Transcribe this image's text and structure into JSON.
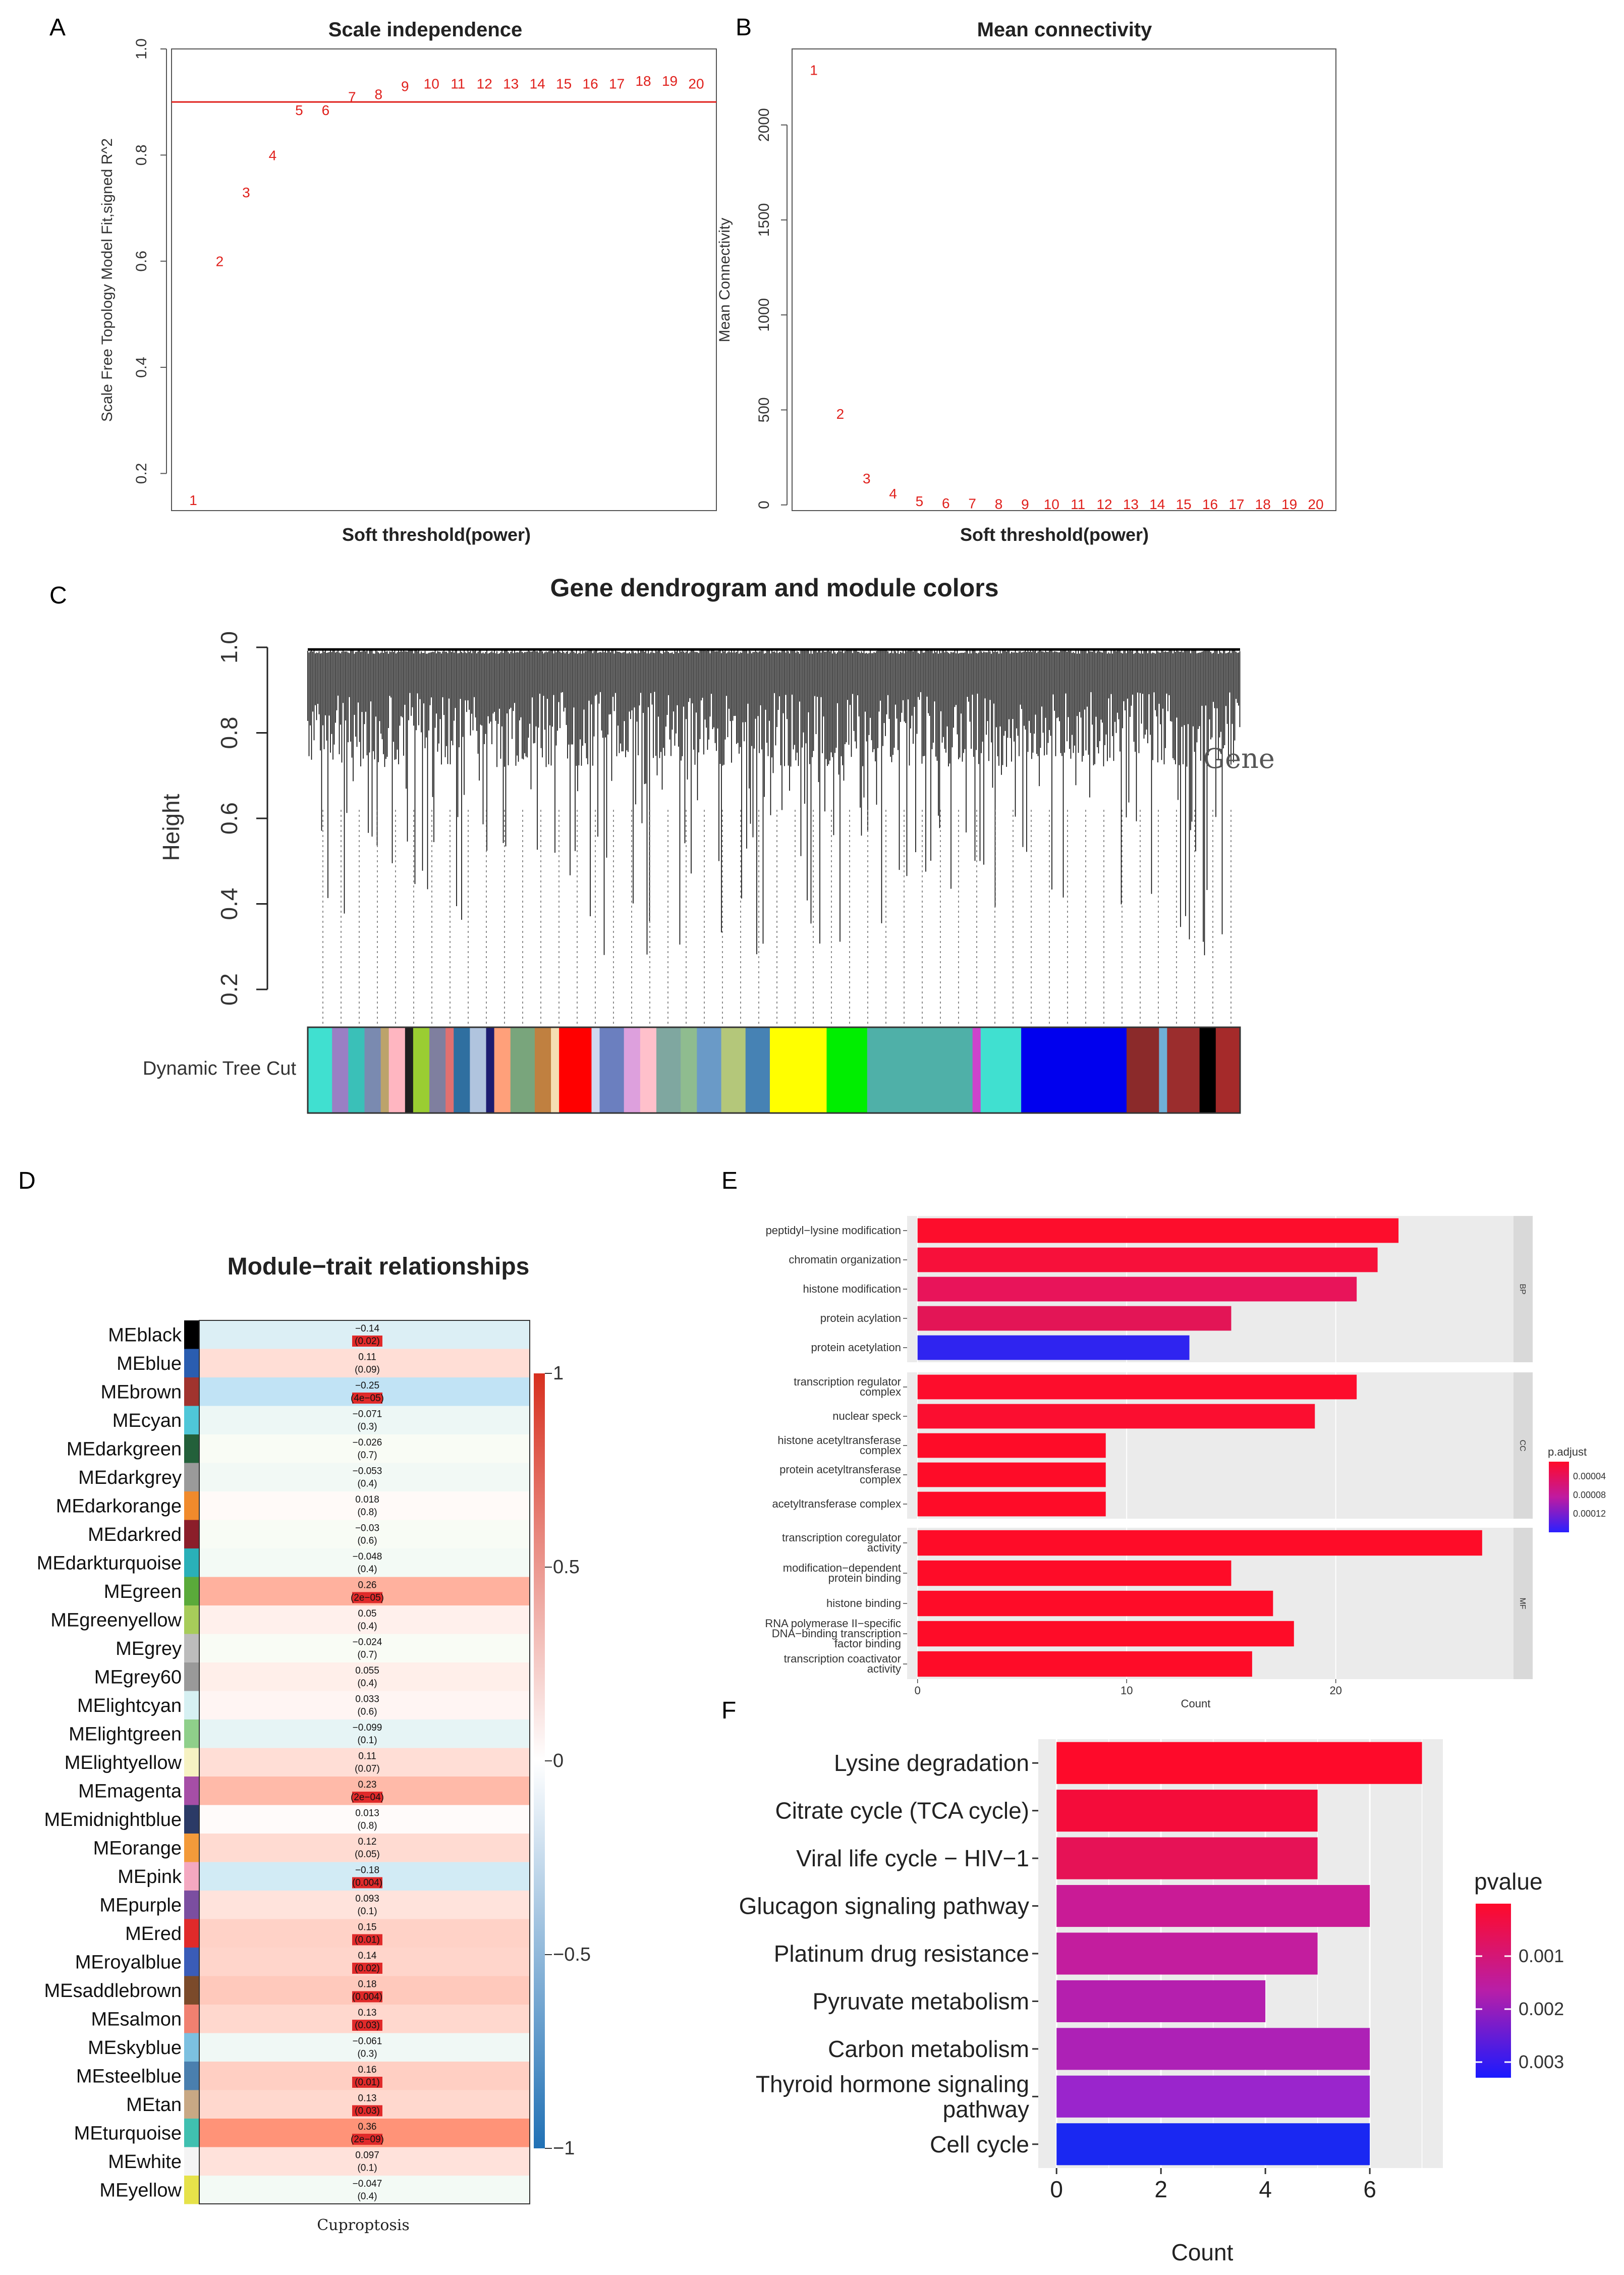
{
  "panel_letters": {
    "a": "A",
    "b": "B",
    "c": "C",
    "d": "D",
    "e": "E",
    "f": "F"
  },
  "colors": {
    "red": "#e0201c",
    "line": "#e0201c"
  },
  "chart_data": [
    {
      "id": "A",
      "type": "scatter",
      "title": "Scale independence",
      "xlabel": "Soft threshold(power)",
      "ylabel": "Scale Free Topology Model Fit,signed R^2",
      "ylim": [
        0.13,
        1.0
      ],
      "yticks": [
        0.2,
        0.4,
        0.6,
        0.8,
        1.0
      ],
      "threshold_line": 0.9,
      "points": [
        {
          "label": "1",
          "x": 1,
          "y": 0.15
        },
        {
          "label": "2",
          "x": 2,
          "y": 0.6
        },
        {
          "label": "3",
          "x": 3,
          "y": 0.73
        },
        {
          "label": "4",
          "x": 4,
          "y": 0.8
        },
        {
          "label": "5",
          "x": 5,
          "y": 0.885
        },
        {
          "label": "6",
          "x": 6,
          "y": 0.885
        },
        {
          "label": "7",
          "x": 7,
          "y": 0.91
        },
        {
          "label": "8",
          "x": 8,
          "y": 0.915
        },
        {
          "label": "9",
          "x": 9,
          "y": 0.93
        },
        {
          "label": "10",
          "x": 10,
          "y": 0.935
        },
        {
          "label": "11",
          "x": 11,
          "y": 0.935
        },
        {
          "label": "12",
          "x": 12,
          "y": 0.935
        },
        {
          "label": "13",
          "x": 13,
          "y": 0.935
        },
        {
          "label": "14",
          "x": 14,
          "y": 0.935
        },
        {
          "label": "15",
          "x": 15,
          "y": 0.935
        },
        {
          "label": "16",
          "x": 16,
          "y": 0.935
        },
        {
          "label": "17",
          "x": 17,
          "y": 0.935
        },
        {
          "label": "18",
          "x": 18,
          "y": 0.94
        },
        {
          "label": "19",
          "x": 19,
          "y": 0.94
        },
        {
          "label": "20",
          "x": 20,
          "y": 0.935
        }
      ]
    },
    {
      "id": "B",
      "type": "scatter",
      "title": "Mean connectivity",
      "xlabel": "Soft threshold(power)",
      "ylabel": "Mean Connectivity",
      "ylim": [
        -30,
        2400
      ],
      "yticks": [
        0,
        500,
        1000,
        1500,
        2000
      ],
      "points": [
        {
          "label": "1",
          "x": 1,
          "y": 2290
        },
        {
          "label": "2",
          "x": 2,
          "y": 480
        },
        {
          "label": "3",
          "x": 3,
          "y": 140
        },
        {
          "label": "4",
          "x": 4,
          "y": 60
        },
        {
          "label": "5",
          "x": 5,
          "y": 20
        },
        {
          "label": "6",
          "x": 6,
          "y": 10
        },
        {
          "label": "7",
          "x": 7,
          "y": 8
        },
        {
          "label": "8",
          "x": 8,
          "y": 6
        },
        {
          "label": "9",
          "x": 9,
          "y": 4
        },
        {
          "label": "10",
          "x": 10,
          "y": 4
        },
        {
          "label": "11",
          "x": 11,
          "y": 4
        },
        {
          "label": "12",
          "x": 12,
          "y": 4
        },
        {
          "label": "13",
          "x": 13,
          "y": 4
        },
        {
          "label": "14",
          "x": 14,
          "y": 4
        },
        {
          "label": "15",
          "x": 15,
          "y": 4
        },
        {
          "label": "16",
          "x": 16,
          "y": 4
        },
        {
          "label": "17",
          "x": 17,
          "y": 4
        },
        {
          "label": "18",
          "x": 18,
          "y": 4
        },
        {
          "label": "19",
          "x": 19,
          "y": 4
        },
        {
          "label": "20",
          "x": 20,
          "y": 4
        }
      ]
    },
    {
      "id": "C",
      "type": "dendrogram",
      "title": "Gene dendrogram and module colors",
      "ylabel": "Height",
      "ylim": [
        0.2,
        1.0
      ],
      "yticks": [
        "0.2",
        "0.4",
        "0.6",
        "0.8",
        "1.0"
      ],
      "annotation": "Gene",
      "color_bar_label": "Dynamic Tree Cut",
      "color_blocks": [
        {
          "color": "#40e0d0",
          "w": 3
        },
        {
          "color": "#9a7fc4",
          "w": 2
        },
        {
          "color": "#3ac0b8",
          "w": 2
        },
        {
          "color": "#7a8ab0",
          "w": 2
        },
        {
          "color": "#bca36a",
          "w": 1
        },
        {
          "color": "#ffb6c1",
          "w": 2
        },
        {
          "color": "#1f1f1f",
          "w": 1
        },
        {
          "color": "#9acd32",
          "w": 2
        },
        {
          "color": "#7f7f9f",
          "w": 2
        },
        {
          "color": "#e07070",
          "w": 1
        },
        {
          "color": "#2f6fa0",
          "w": 2
        },
        {
          "color": "#b0c4de",
          "w": 2
        },
        {
          "color": "#1c1c70",
          "w": 1
        },
        {
          "color": "#ffa07a",
          "w": 2
        },
        {
          "color": "#79a57c",
          "w": 3
        },
        {
          "color": "#c08040",
          "w": 2
        },
        {
          "color": "#f5deb3",
          "w": 1
        },
        {
          "color": "#ff0000",
          "w": 4
        },
        {
          "color": "#cfd8f0",
          "w": 1
        },
        {
          "color": "#6b7fbf",
          "w": 3
        },
        {
          "color": "#dda0dd",
          "w": 2
        },
        {
          "color": "#ffc0cb",
          "w": 2
        },
        {
          "color": "#7fa7a0",
          "w": 3
        },
        {
          "color": "#8fbc8f",
          "w": 2
        },
        {
          "color": "#6a9ac7",
          "w": 3
        },
        {
          "color": "#b4c77a",
          "w": 3
        },
        {
          "color": "#4682b4",
          "w": 3
        },
        {
          "color": "#ffff00",
          "w": 7
        },
        {
          "color": "#00ee00",
          "w": 5
        },
        {
          "color": "#4fb0a8",
          "w": 13
        },
        {
          "color": "#cc44cc",
          "w": 1
        },
        {
          "color": "#40e0d0",
          "w": 5
        },
        {
          "color": "#0000ee",
          "w": 13
        },
        {
          "color": "#8b2a2a",
          "w": 4
        },
        {
          "color": "#6fb0d8",
          "w": 1
        },
        {
          "color": "#9b2d2d",
          "w": 4
        },
        {
          "color": "#000000",
          "w": 2
        },
        {
          "color": "#a52a2a",
          "w": 3
        }
      ]
    },
    {
      "id": "D",
      "type": "heatmap",
      "title": "Module−trait relationships",
      "xlabel": "Cuproptosis",
      "scale": [
        "1",
        "0.5",
        "0",
        "−0.5",
        "−1"
      ],
      "rows": [
        {
          "name": "MEblack",
          "color": "#000000",
          "r": "−0.14",
          "p": "(0.02)",
          "v": -0.14,
          "sig": true
        },
        {
          "name": "MEblue",
          "color": "#2a5db0",
          "r": "0.11",
          "p": "(0.09)",
          "v": 0.11,
          "sig": false
        },
        {
          "name": "MEbrown",
          "color": "#a0332e",
          "r": "−0.25",
          "p": "(4e−05)",
          "v": -0.25,
          "sig": true
        },
        {
          "name": "MEcyan",
          "color": "#4fc7d8",
          "r": "−0.071",
          "p": "(0.3)",
          "v": -0.071,
          "sig": false
        },
        {
          "name": "MEdarkgreen",
          "color": "#23603a",
          "r": "−0.026",
          "p": "(0.7)",
          "v": -0.026,
          "sig": false
        },
        {
          "name": "MEdarkgrey",
          "color": "#9a9a9a",
          "r": "−0.053",
          "p": "(0.4)",
          "v": -0.053,
          "sig": false
        },
        {
          "name": "MEdarkorange",
          "color": "#f08a2c",
          "r": "0.018",
          "p": "(0.8)",
          "v": 0.018,
          "sig": false
        },
        {
          "name": "MEdarkred",
          "color": "#8b1e2a",
          "r": "−0.03",
          "p": "(0.6)",
          "v": -0.03,
          "sig": false
        },
        {
          "name": "MEdarkturquoise",
          "color": "#2ab0b8",
          "r": "−0.048",
          "p": "(0.4)",
          "v": -0.048,
          "sig": false
        },
        {
          "name": "MEgreen",
          "color": "#5aaa3a",
          "r": "0.26",
          "p": "(2e−05)",
          "v": 0.26,
          "sig": true
        },
        {
          "name": "MEgreenyellow",
          "color": "#a7cc5a",
          "r": "0.05",
          "p": "(0.4)",
          "v": 0.05,
          "sig": false
        },
        {
          "name": "MEgrey",
          "color": "#bcbcbc",
          "r": "−0.024",
          "p": "(0.7)",
          "v": -0.024,
          "sig": false
        },
        {
          "name": "MEgrey60",
          "color": "#999999",
          "r": "0.055",
          "p": "(0.4)",
          "v": 0.055,
          "sig": false
        },
        {
          "name": "MElightcyan",
          "color": "#d6f0f2",
          "r": "0.033",
          "p": "(0.6)",
          "v": 0.033,
          "sig": false
        },
        {
          "name": "MElightgreen",
          "color": "#8fcf8a",
          "r": "−0.099",
          "p": "(0.1)",
          "v": -0.099,
          "sig": false
        },
        {
          "name": "MElightyellow",
          "color": "#f6f2c2",
          "r": "0.11",
          "p": "(0.07)",
          "v": 0.11,
          "sig": false
        },
        {
          "name": "MEmagenta",
          "color": "#a64ea6",
          "r": "0.23",
          "p": "(2e−04)",
          "v": 0.23,
          "sig": true
        },
        {
          "name": "MEmidnightblue",
          "color": "#2b3a66",
          "r": "0.013",
          "p": "(0.8)",
          "v": 0.013,
          "sig": false
        },
        {
          "name": "MEorange",
          "color": "#f39a3a",
          "r": "0.12",
          "p": "(0.05)",
          "v": 0.12,
          "sig": false
        },
        {
          "name": "MEpink",
          "color": "#f4a8c0",
          "r": "−0.18",
          "p": "(0.004)",
          "v": -0.18,
          "sig": true
        },
        {
          "name": "MEpurple",
          "color": "#7b4ea0",
          "r": "0.093",
          "p": "(0.1)",
          "v": 0.093,
          "sig": false
        },
        {
          "name": "MEred",
          "color": "#e02a2a",
          "r": "0.15",
          "p": "(0.01)",
          "v": 0.15,
          "sig": true
        },
        {
          "name": "MEroyalblue",
          "color": "#3a5cb8",
          "r": "0.14",
          "p": "(0.02)",
          "v": 0.14,
          "sig": true
        },
        {
          "name": "MEsaddlebrown",
          "color": "#7b4a2a",
          "r": "0.18",
          "p": "(0.004)",
          "v": 0.18,
          "sig": true
        },
        {
          "name": "MEsalmon",
          "color": "#f08070",
          "r": "0.13",
          "p": "(0.03)",
          "v": 0.13,
          "sig": true
        },
        {
          "name": "MEskyblue",
          "color": "#7cc0e0",
          "r": "−0.061",
          "p": "(0.3)",
          "v": -0.061,
          "sig": false
        },
        {
          "name": "MEsteelblue",
          "color": "#4a7fae",
          "r": "0.16",
          "p": "(0.01)",
          "v": 0.16,
          "sig": true
        },
        {
          "name": "MEtan",
          "color": "#c8a884",
          "r": "0.13",
          "p": "(0.03)",
          "v": 0.13,
          "sig": true
        },
        {
          "name": "MEturquoise",
          "color": "#40c0b0",
          "r": "0.36",
          "p": "(2e−09)",
          "v": 0.36,
          "sig": true
        },
        {
          "name": "MEwhite",
          "color": "#f4f4f4",
          "r": "0.097",
          "p": "(0.1)",
          "v": 0.097,
          "sig": false
        },
        {
          "name": "MEyellow",
          "color": "#e6e24a",
          "r": "−0.047",
          "p": "(0.4)",
          "v": -0.047,
          "sig": false
        }
      ]
    },
    {
      "id": "E",
      "type": "bar",
      "orientation": "horizontal",
      "xlabel": "Count",
      "xticks": [
        0,
        10,
        20
      ],
      "xlim": [
        0,
        28.5
      ],
      "legend_title": "p.adjust",
      "legend_ticks": [
        "0.00004",
        "0.00008",
        "0.00012"
      ],
      "facets": [
        {
          "strip": "BP",
          "bars": [
            {
              "label": [
                "peptidyl−lysine modification"
              ],
              "value": 23,
              "color": "#fd0d2c"
            },
            {
              "label": [
                "chromatin organization"
              ],
              "value": 22,
              "color": "#f7103a"
            },
            {
              "label": [
                "histone modification"
              ],
              "value": 21,
              "color": "#e8145a"
            },
            {
              "label": [
                "protein acylation"
              ],
              "value": 15,
              "color": "#e31556"
            },
            {
              "label": [
                "protein acetylation"
              ],
              "value": 13,
              "color": "#2f24f0"
            }
          ]
        },
        {
          "strip": "CC",
          "bars": [
            {
              "label": [
                "transcription regulator",
                "complex"
              ],
              "value": 21,
              "color": "#fd0d2c"
            },
            {
              "label": [
                "nuclear speck"
              ],
              "value": 19,
              "color": "#fb0e30"
            },
            {
              "label": [
                "histone acetyltransferase",
                "complex"
              ],
              "value": 9,
              "color": "#fe0c28"
            },
            {
              "label": [
                "protein acetyltransferase",
                "complex"
              ],
              "value": 9,
              "color": "#fe0c28"
            },
            {
              "label": [
                "acetyltransferase complex"
              ],
              "value": 9,
              "color": "#fe0c28"
            }
          ]
        },
        {
          "strip": "MF",
          "bars": [
            {
              "label": [
                "transcription coregulator",
                "activity"
              ],
              "value": 27,
              "color": "#fe0c28"
            },
            {
              "label": [
                "modification−dependent",
                "protein binding"
              ],
              "value": 15,
              "color": "#fe0c28"
            },
            {
              "label": [
                "histone binding"
              ],
              "value": 17,
              "color": "#fe0c28"
            },
            {
              "label": [
                "RNA polymerase II−specific",
                "DNA−binding transcription",
                "factor binding"
              ],
              "value": 18,
              "color": "#fe0c28"
            },
            {
              "label": [
                "transcription coactivator",
                "activity"
              ],
              "value": 16,
              "color": "#fe0c28"
            }
          ]
        }
      ]
    },
    {
      "id": "F",
      "type": "bar",
      "orientation": "horizontal",
      "xlabel": "Count",
      "xticks": [
        0,
        2,
        4,
        6
      ],
      "xlim": [
        -0.35,
        7.4
      ],
      "legend_title": "pvalue",
      "legend_ticks": [
        "0.001",
        "0.002",
        "0.003"
      ],
      "bars": [
        {
          "label": [
            "Lysine degradation"
          ],
          "value": 7,
          "color": "#fe0a2a"
        },
        {
          "label": [
            "Citrate cycle (TCA cycle)"
          ],
          "value": 5,
          "color": "#f40c3a"
        },
        {
          "label": [
            "Viral life cycle − HIV−1"
          ],
          "value": 5,
          "color": "#e61256"
        },
        {
          "label": [
            "Glucagon signaling pathway"
          ],
          "value": 6,
          "color": "#c91b96"
        },
        {
          "label": [
            "Platinum drug resistance"
          ],
          "value": 5,
          "color": "#c31d9e"
        },
        {
          "label": [
            "Pyruvate metabolism"
          ],
          "value": 4,
          "color": "#b51fae"
        },
        {
          "label": [
            "Carbon metabolism"
          ],
          "value": 6,
          "color": "#ad21b6"
        },
        {
          "label": [
            "Thyroid hormone signaling",
            "pathway"
          ],
          "value": 6,
          "color": "#9a25cc"
        },
        {
          "label": [
            "Cell cycle"
          ],
          "value": 6,
          "color": "#1a28f2"
        }
      ]
    }
  ]
}
